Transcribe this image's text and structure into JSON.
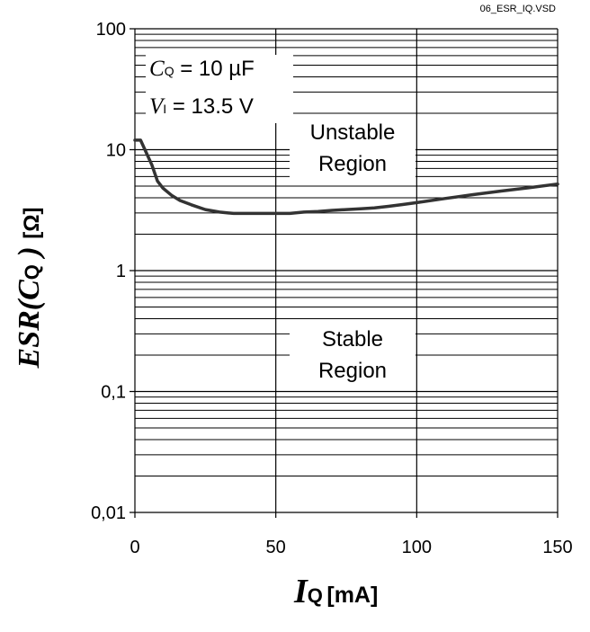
{
  "figure_id": "06_ESR_IQ.VSD",
  "annotation": {
    "cq_symbol": "C",
    "cq_sub": "Q",
    "cq_value": " = 10 µF",
    "vi_symbol": "V",
    "vi_sub": "I",
    "vi_value": " = 13.5 V"
  },
  "regions": {
    "unstable_line1": "Unstable",
    "unstable_line2": "Region",
    "stable_line1": "Stable",
    "stable_line2": "Region"
  },
  "ylabel": {
    "main": "ESR(C",
    "sub": "Q",
    "close": " )",
    "unit": "[Ω]"
  },
  "xlabel": {
    "symbol": "I",
    "sub": "Q",
    "unit": "[mA]"
  },
  "chart_data": {
    "type": "line",
    "xscale": "linear",
    "yscale": "log",
    "xlim": [
      0,
      150
    ],
    "ylim": [
      0.01,
      100
    ],
    "xticks": [
      0,
      50,
      100,
      150
    ],
    "xtick_labels": [
      "0",
      "50",
      "100",
      "150"
    ],
    "yticks": [
      0.01,
      0.1,
      1,
      10,
      100
    ],
    "ytick_labels": [
      "0,01",
      "0,1",
      "1",
      "10",
      "100"
    ],
    "grid": "horizontal log minor + vertical major",
    "legend": "none",
    "line_color": "#333333",
    "series": [
      {
        "x": [
          0,
          2,
          4,
          6,
          8,
          10,
          13,
          16,
          20,
          25,
          30,
          35,
          40,
          45,
          50,
          55,
          60,
          65,
          70,
          75,
          80,
          85,
          90,
          95,
          100,
          110,
          120,
          130,
          140,
          150
        ],
        "y": [
          12,
          12,
          9.5,
          7.5,
          5.5,
          4.8,
          4.2,
          3.8,
          3.5,
          3.2,
          3.05,
          2.97,
          2.97,
          2.97,
          2.97,
          2.97,
          3.05,
          3.08,
          3.15,
          3.2,
          3.25,
          3.3,
          3.4,
          3.52,
          3.65,
          3.95,
          4.25,
          4.55,
          4.85,
          5.2
        ]
      }
    ]
  }
}
